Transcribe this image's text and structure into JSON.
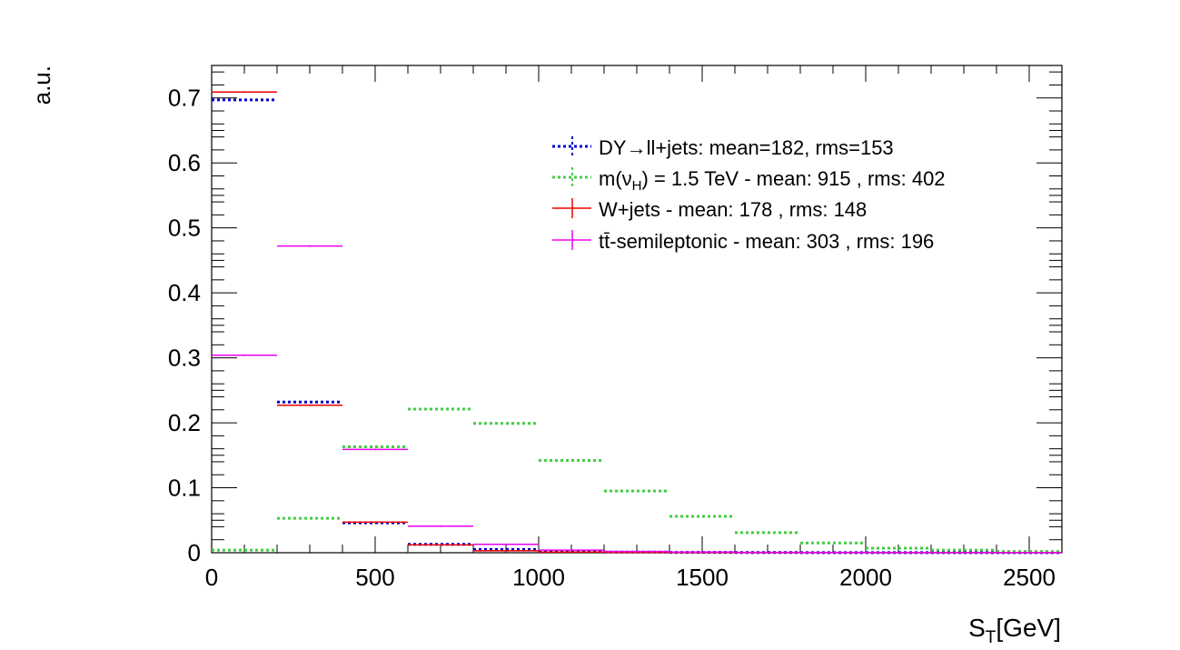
{
  "chart_data": {
    "type": "histogram",
    "title": "",
    "xlabel_main": "S",
    "xlabel_sub": "T",
    "xlabel_unit": "[GeV]",
    "ylabel": "a.u.",
    "xlim": [
      0,
      2600
    ],
    "ylim": [
      0,
      0.75
    ],
    "x_ticks": [
      "0",
      "500",
      "1000",
      "1500",
      "2000",
      "2500"
    ],
    "x_tick_values": [
      0,
      500,
      1000,
      1500,
      2000,
      2500
    ],
    "y_ticks": [
      "0",
      "0.1",
      "0.2",
      "0.3",
      "0.4",
      "0.5",
      "0.6",
      "0.7"
    ],
    "y_tick_values": [
      0,
      0.1,
      0.2,
      0.3,
      0.4,
      0.5,
      0.6,
      0.7
    ],
    "legend_position": "top-right",
    "grid": false,
    "series": [
      {
        "name": "DY→ll+jets: mean=182, rms=153",
        "legend_parts": [
          "DY",
          "→",
          "ll+jets: mean=182, rms=153"
        ],
        "color": "#0000cc",
        "style": "dotted",
        "bin_width": 200,
        "x": [
          100,
          300,
          500,
          700,
          900,
          1100,
          1300,
          1500,
          1700,
          1900,
          2100,
          2300,
          2500
        ],
        "values": [
          0.697,
          0.232,
          0.046,
          0.013,
          0.005,
          0.002,
          0.001,
          0.0005,
          0.0003,
          0.0002,
          0.0001,
          0.0001,
          0.0001
        ]
      },
      {
        "name": "m(νH) = 1.5 TeV - mean: 915 , rms: 402",
        "legend_parts": [
          "m(ν",
          "H",
          ") = 1.5 TeV - mean: 915 , rms: 402"
        ],
        "color": "#44cc44",
        "style": "dotted",
        "bin_width": 200,
        "x": [
          100,
          300,
          500,
          700,
          900,
          1100,
          1300,
          1500,
          1700,
          1900,
          2100,
          2300,
          2500
        ],
        "values": [
          0.004,
          0.053,
          0.163,
          0.221,
          0.199,
          0.142,
          0.095,
          0.056,
          0.031,
          0.015,
          0.007,
          0.004,
          0.002
        ]
      },
      {
        "name": "W+jets - mean: 178 , rms: 148",
        "color": "#ee0000",
        "style": "solid",
        "bin_width": 200,
        "x": [
          100,
          300,
          500,
          700,
          900,
          1100,
          1300,
          1500,
          1700,
          1900,
          2100,
          2300,
          2500
        ],
        "values": [
          0.709,
          0.227,
          0.047,
          0.012,
          0.003,
          0.001,
          0.0005,
          0.0003,
          0.0002,
          0.0001,
          0.0001,
          0.0001,
          0.0001
        ]
      },
      {
        "name": "tt̄-semileptonic - mean: 303 , rms: 196",
        "legend_parts": [
          "t",
          "t̄",
          "-semileptonic - mean: 303 , rms: 196"
        ],
        "color": "#ee00ee",
        "style": "solid",
        "bin_width": 200,
        "x": [
          100,
          300,
          500,
          700,
          900,
          1100,
          1300,
          1500,
          1700,
          1900,
          2100,
          2300,
          2500
        ],
        "values": [
          0.304,
          0.472,
          0.159,
          0.041,
          0.013,
          0.004,
          0.002,
          0.001,
          0.0005,
          0.0003,
          0.0002,
          0.0001,
          0.0001
        ]
      }
    ]
  }
}
